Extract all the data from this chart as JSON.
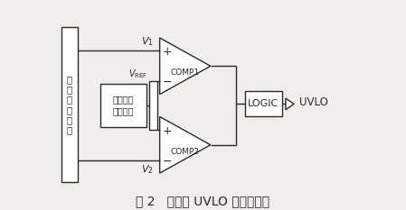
{
  "bg_color": "#f0eeea",
  "line_color": "#2a2a2a",
  "title": "图 2   传统的 UVLO 电路结构图",
  "title_fontsize": 10,
  "fig_width": 4.49,
  "fig_height": 2.33,
  "dpi": 100,
  "font_family": "SimSun",
  "xlim": [
    0,
    10
  ],
  "ylim": [
    0,
    7
  ]
}
